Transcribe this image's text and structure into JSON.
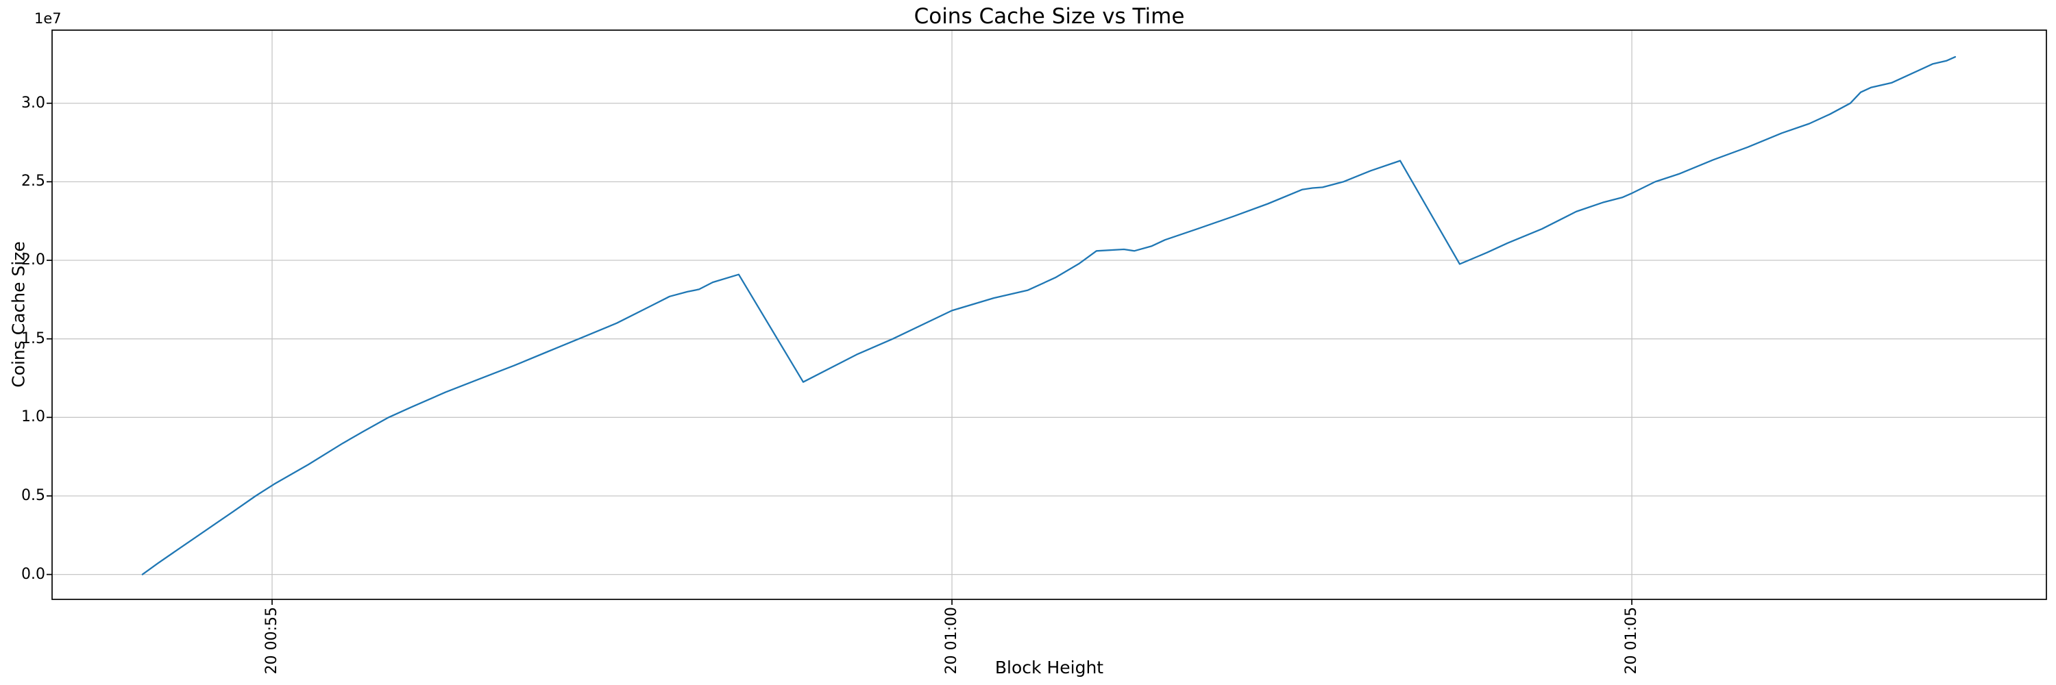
{
  "figure": {
    "title": "Coins Cache Size vs Time",
    "xlabel": "Block Height",
    "ylabel": "Coins Cache Size",
    "offset_text": "1e7"
  },
  "chart_data": {
    "type": "line",
    "title": "Coins Cache Size vs Time",
    "xlabel": "Block Height",
    "ylabel": "Coins Cache Size",
    "legend_position": "none",
    "grid": true,
    "grid_color": "#c6c6c6",
    "line_color": "#1f77b4",
    "spine_color": "#000000",
    "x_axis": {
      "tick_labels": [
        "20 00:55",
        "20 01:00",
        "20 01:05"
      ],
      "tick_positions": [
        0,
        5,
        10
      ],
      "units": "minutes relative to first tick (labels are day hh:mm time-of-day)",
      "tick_label_rotation_deg": 90,
      "xlim": [
        -1.618,
        13.049
      ]
    },
    "y_axis": {
      "tick_labels": [
        "0.0",
        "0.5",
        "1.0",
        "1.5",
        "2.0",
        "2.5",
        "3.0"
      ],
      "ticks": [
        0.0,
        0.5,
        1.0,
        1.5,
        2.0,
        2.5,
        3.0
      ],
      "scale_factor_label": "1e7",
      "values_scaled_by": 10000000,
      "ylim": [
        -0.1586,
        3.4654
      ]
    },
    "series": [
      {
        "name": "Coins Cache Size",
        "points": [
          [
            -0.953,
            0.0
          ],
          [
            -0.842,
            0.07
          ],
          [
            -0.691,
            0.16
          ],
          [
            -0.489,
            0.28
          ],
          [
            -0.287,
            0.4
          ],
          [
            -0.121,
            0.5
          ],
          [
            0.015,
            0.575
          ],
          [
            0.267,
            0.7
          ],
          [
            0.519,
            0.835
          ],
          [
            0.67,
            0.91
          ],
          [
            0.857,
            1.0
          ],
          [
            1.023,
            1.065
          ],
          [
            1.275,
            1.16
          ],
          [
            1.527,
            1.245
          ],
          [
            1.779,
            1.33
          ],
          [
            2.031,
            1.42
          ],
          [
            2.283,
            1.51
          ],
          [
            2.535,
            1.6
          ],
          [
            2.787,
            1.71
          ],
          [
            2.923,
            1.77
          ],
          [
            3.054,
            1.8
          ],
          [
            3.14,
            1.815
          ],
          [
            3.241,
            1.86
          ],
          [
            3.432,
            1.91
          ],
          [
            3.906,
            1.225
          ],
          [
            4.299,
            1.4
          ],
          [
            4.565,
            1.5
          ],
          [
            5.0,
            1.68
          ],
          [
            5.307,
            1.76
          ],
          [
            5.559,
            1.81
          ],
          [
            5.761,
            1.89
          ],
          [
            5.937,
            1.98
          ],
          [
            6.063,
            2.06
          ],
          [
            6.265,
            2.07
          ],
          [
            6.341,
            2.06
          ],
          [
            6.467,
            2.09
          ],
          [
            6.567,
            2.13
          ],
          [
            6.804,
            2.2
          ],
          [
            7.071,
            2.28
          ],
          [
            7.323,
            2.36
          ],
          [
            7.575,
            2.45
          ],
          [
            7.651,
            2.46
          ],
          [
            7.726,
            2.465
          ],
          [
            7.878,
            2.5
          ],
          [
            8.079,
            2.57
          ],
          [
            8.296,
            2.634
          ],
          [
            8.734,
            1.976
          ],
          [
            8.936,
            2.05
          ],
          [
            9.087,
            2.11
          ],
          [
            9.339,
            2.2
          ],
          [
            9.591,
            2.31
          ],
          [
            9.793,
            2.37
          ],
          [
            9.929,
            2.4
          ],
          [
            9.995,
            2.425
          ],
          [
            10.171,
            2.5
          ],
          [
            10.347,
            2.55
          ],
          [
            10.599,
            2.64
          ],
          [
            10.851,
            2.72
          ],
          [
            11.103,
            2.81
          ],
          [
            11.305,
            2.87
          ],
          [
            11.456,
            2.93
          ],
          [
            11.607,
            3.0
          ],
          [
            11.683,
            3.07
          ],
          [
            11.758,
            3.1
          ],
          [
            11.91,
            3.13
          ],
          [
            12.061,
            3.19
          ],
          [
            12.212,
            3.25
          ],
          [
            12.313,
            3.27
          ],
          [
            12.378,
            3.295
          ]
        ]
      }
    ]
  }
}
